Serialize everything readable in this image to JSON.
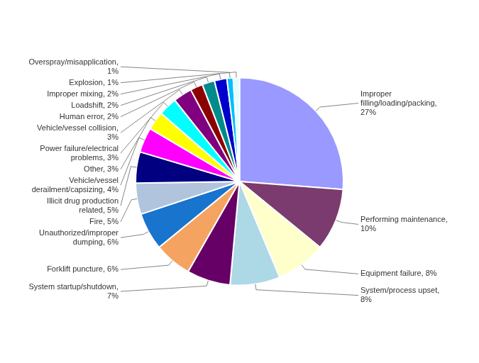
{
  "chart_data": {
    "type": "pie",
    "categories": [
      "Improper\nfilling/loading/packing,\n27%",
      "Performing maintenance,\n10%",
      "Equipment failure, 8%",
      "System/process upset,\n8%",
      "System startup/shutdown,\n7%",
      "Forklift puncture, 6%",
      "Unauthorized/improper\ndumping, 6%",
      "Fire, 5%",
      "Illicit drug production\nrelated, 5%",
      "Vehicle/vessel\nderailment/capsizing, 4%",
      "Other, 3%",
      "Power failure/electrical\nproblems, 3%",
      "Vehicle/vessel collision,\n3%",
      "Human error, 2%",
      "Loadshift, 2%",
      "Improper mixing, 2%",
      "Overspray/misapplication,\n1%",
      "Explosion, 1%"
    ],
    "values": [
      27,
      10,
      8,
      8,
      7,
      6,
      6,
      5,
      5,
      4,
      3,
      3,
      3,
      2,
      2,
      2,
      1,
      1
    ],
    "colors": [
      "#9999FF",
      "#7B3B6E",
      "#FFFFCC",
      "#ADD8E6",
      "#660066",
      "#F4A460",
      "#1874CD",
      "#B0C4DE",
      "#000080",
      "#FF00FF",
      "#FFFF00",
      "#00FFFF",
      "#800080",
      "#8B0000",
      "#008B8B",
      "#0000CD",
      "#00BFFF",
      "#E0FFFF"
    ]
  }
}
